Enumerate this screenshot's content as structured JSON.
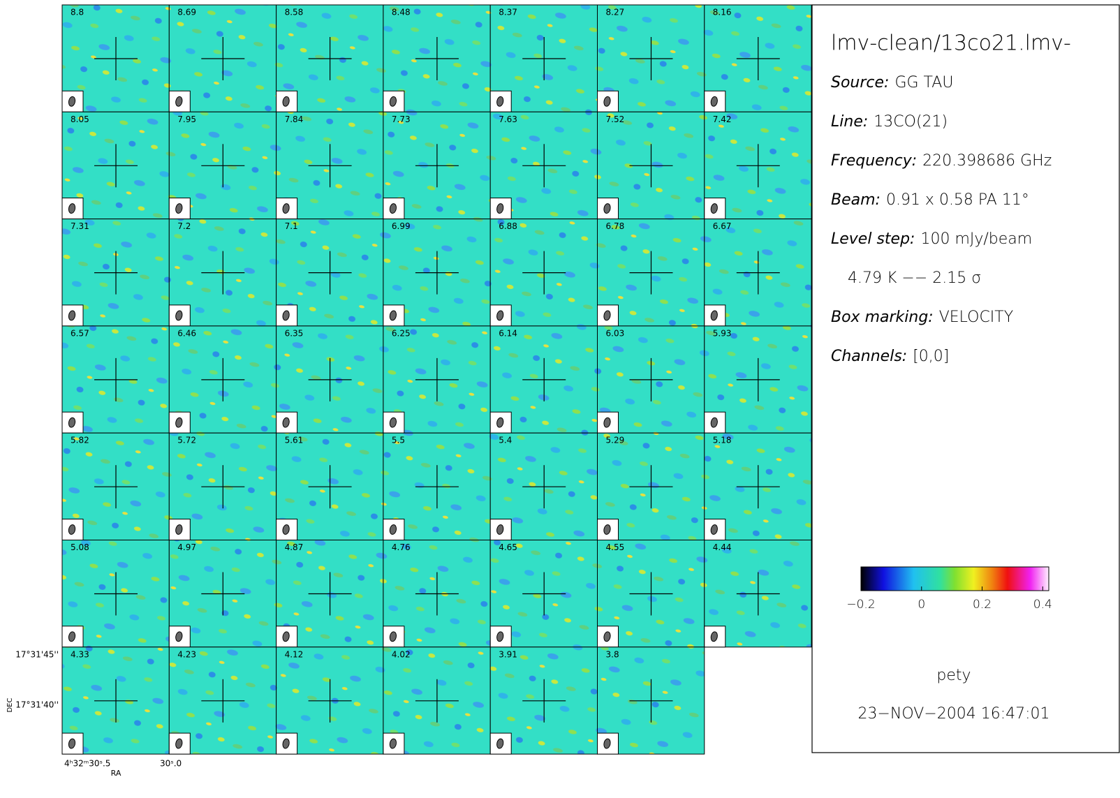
{
  "channels": [
    "8.8",
    "8.69",
    "8.58",
    "8.48",
    "8.37",
    "8.27",
    "8.16",
    "8.05",
    "7.95",
    "7.84",
    "7.73",
    "7.63",
    "7.52",
    "7.42",
    "7.31",
    "7.2",
    "7.1",
    "6.99",
    "6.88",
    "6.78",
    "6.67",
    "6.57",
    "6.46",
    "6.35",
    "6.25",
    "6.14",
    "6.03",
    "5.93",
    "5.82",
    "5.72",
    "5.61",
    "5.5",
    "5.4",
    "5.29",
    "5.18",
    "5.08",
    "4.97",
    "4.87",
    "4.76",
    "4.65",
    "4.55",
    "4.44",
    "4.33",
    "4.23",
    "4.12",
    "4.02",
    "3.91",
    "3.8"
  ],
  "info": {
    "title": "lmv-clean/13co21.lmv-",
    "lines": [
      {
        "label": "Source:",
        "value": "GG TAU"
      },
      {
        "label": "Line:",
        "value": "13CO(21)"
      },
      {
        "label": "Frequency:",
        "value": "220.398686 GHz"
      },
      {
        "label": "Beam:",
        "value": "0.91 x 0.58 PA 11°"
      },
      {
        "label": "Level step:",
        "value": "100 mJy/beam"
      },
      {
        "value": "4.79 K  −−  2.15 σ"
      },
      {
        "label": "Box marking:",
        "value": "VELOCITY"
      },
      {
        "label": "Channels:",
        "value": "[0,0]"
      }
    ],
    "author": "pety",
    "date": "23−NOV−2004 16:47:01"
  },
  "colorbar": {
    "lim": [
      -0.2,
      0.42
    ],
    "ticks": [
      {
        "value": -0.2,
        "label": "−0.2"
      },
      0,
      0.2,
      0.4
    ]
  },
  "axes": {
    "dec_ticks": [
      "17°31'45''",
      "17°31'40''"
    ],
    "dec_label": "DEC",
    "ra_ticks": [
      "4ʰ32ᵐ30ˢ.5",
      "30ˢ.0"
    ],
    "ra_label": "RA"
  }
}
